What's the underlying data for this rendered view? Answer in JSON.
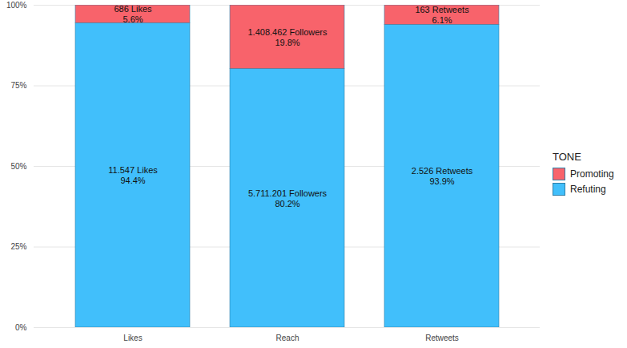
{
  "chart_data": {
    "type": "bar",
    "stacked": true,
    "data_labels": true,
    "grid": true,
    "legend": "right",
    "legend_title": "TONE",
    "categories": [
      "Likes",
      "Reach",
      "Retweets"
    ],
    "series": [
      {
        "name": "Promoting",
        "color": "#F8636B",
        "values": [
          5.6,
          19.8,
          6.1
        ],
        "value_labels": [
          "686 Likes\n5.6%",
          "1.408.462 Followers\n19.8%",
          "163 Retweets\n6.1%"
        ]
      },
      {
        "name": "Refuting",
        "color": "#41BFFB",
        "values": [
          94.4,
          80.2,
          93.9
        ],
        "value_labels": [
          "11.547 Likes\n94.4%",
          "5.711.201 Followers\n80.2%",
          "2.526 Retweets\n93.9%"
        ]
      }
    ],
    "ylim": [
      0,
      100
    ],
    "yticks": [
      {
        "value": 0,
        "label": "0%"
      },
      {
        "value": 25,
        "label": "25%"
      },
      {
        "value": 50,
        "label": "50%"
      },
      {
        "value": 75,
        "label": "75%"
      },
      {
        "value": 100,
        "label": "100%"
      }
    ]
  }
}
